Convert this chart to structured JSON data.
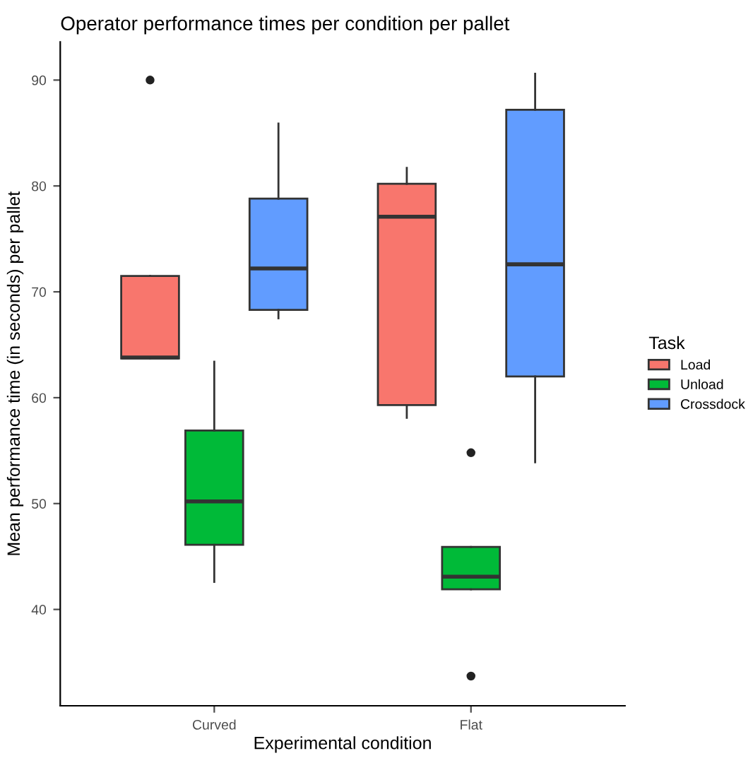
{
  "chart_data": {
    "type": "box",
    "title": "Operator performance times per condition per pallet",
    "xlabel": "Experimental condition",
    "ylabel": "Mean performance time (in seconds) per pallet",
    "legend_title": "Task",
    "categories": [
      "Curved",
      "Flat"
    ],
    "series": [
      {
        "name": "Load",
        "color": "#f8766d",
        "boxes": [
          {
            "low": 63.7,
            "q1": 63.7,
            "median": 63.8,
            "q3": 71.5,
            "high": 71.5,
            "outliers": [
              90
            ]
          },
          {
            "low": 58.1,
            "q1": 59.3,
            "median": 77.1,
            "q3": 80.2,
            "high": 81.7
          }
        ]
      },
      {
        "name": "Unload",
        "color": "#00ba38",
        "boxes": [
          {
            "low": 42.6,
            "q1": 46.1,
            "median": 50.2,
            "q3": 56.9,
            "high": 63.4
          },
          {
            "low": 41.9,
            "q1": 41.9,
            "median": 43.1,
            "q3": 45.9,
            "high": 45.9,
            "outliers": [
              54.8,
              33.7
            ]
          }
        ]
      },
      {
        "name": "Crossdock",
        "color": "#619cff",
        "boxes": [
          {
            "low": 67.5,
            "q1": 68.3,
            "median": 72.2,
            "q3": 78.8,
            "high": 85.9
          },
          {
            "low": 53.9,
            "q1": 62.0,
            "median": 72.6,
            "q3": 87.2,
            "high": 90.6
          }
        ]
      }
    ],
    "ylim": [
      30.9,
      93.6
    ],
    "yticks": [
      40,
      50,
      60,
      70,
      80,
      90
    ],
    "grid": false,
    "legend": "right"
  }
}
